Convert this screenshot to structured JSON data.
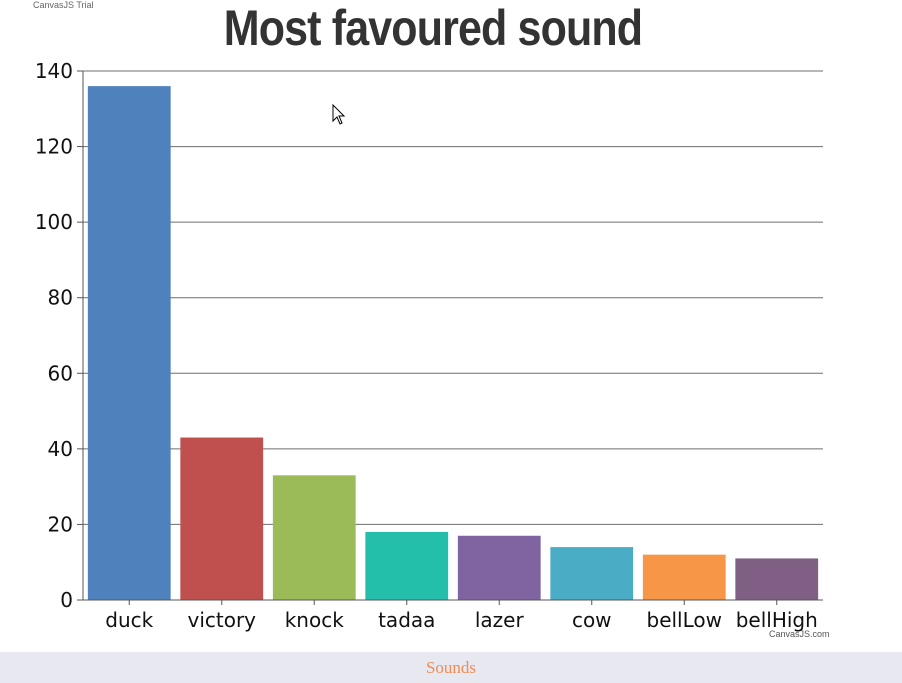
{
  "watermark": "CanvasJS Trial",
  "credit": "CanvasJS.com",
  "footer": {
    "label": "Sounds"
  },
  "chart_data": {
    "type": "bar",
    "title": "Most favoured sound",
    "categories": [
      "duck",
      "victory",
      "knock",
      "tadaa",
      "lazer",
      "cow",
      "bellLow",
      "bellHigh"
    ],
    "values": [
      136,
      43,
      33,
      18,
      17,
      14,
      12,
      11
    ],
    "colors": [
      "#4f81bc",
      "#c0504e",
      "#9bbb58",
      "#23bfaa",
      "#8064a1",
      "#4aacc5",
      "#f79647",
      "#7f6084"
    ],
    "ylim": [
      0,
      140
    ],
    "yticks": [
      0,
      20,
      40,
      60,
      80,
      100,
      120,
      140
    ],
    "grid": true,
    "xlabel": "",
    "ylabel": ""
  }
}
